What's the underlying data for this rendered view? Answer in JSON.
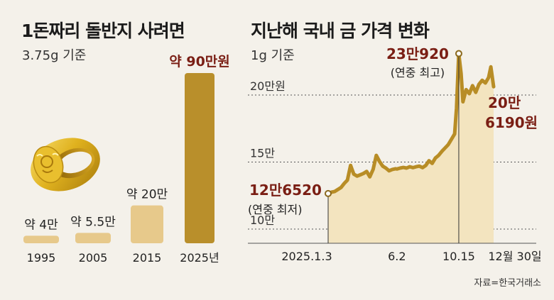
{
  "left": {
    "title": "1돈짜리 돌반지 사려면",
    "subtitle": "3.75g 기준"
  },
  "right": {
    "title": "지난해 국내 금 가격 변화",
    "subtitle": "1g 기준",
    "source": "자료=한국거래소"
  },
  "colors": {
    "bar_light": "#e7c98b",
    "bar_dark": "#b98f2b",
    "line": "#b88d26",
    "area": "#f3e4bf",
    "highlight_text": "#7a1e14",
    "background": "#f4f1ea"
  },
  "chart_data": [
    {
      "type": "bar",
      "categories": [
        "1995",
        "2005",
        "2015",
        "2025년"
      ],
      "values": [
        4,
        5.5,
        20,
        90
      ],
      "data_labels": [
        "약 4만",
        "약 5.5만",
        "약 20만",
        "약 90만원"
      ],
      "title": "1돈짜리 돌반지 사려면",
      "subtitle": "3.75g 기준",
      "unit": "만원"
    },
    {
      "type": "area",
      "title": "지난해 국내 금 가격 변화",
      "subtitle": "1g 기준",
      "y_ticks": [
        100000,
        150000,
        200000
      ],
      "y_tick_labels": [
        "10만",
        "15만",
        "20만원"
      ],
      "x_tick_labels": [
        "2025.1.3",
        "6.2",
        "10.15",
        "12월 30일"
      ],
      "ylim": [
        95000,
        240000
      ],
      "series": [
        {
          "x": [
            "2025-01-03",
            "2025-01-10",
            "2025-01-17",
            "2025-01-24",
            "2025-01-31",
            "2025-02-07",
            "2025-02-14",
            "2025-02-21",
            "2025-02-28",
            "2025-03-07",
            "2025-03-14",
            "2025-03-21",
            "2025-03-28",
            "2025-04-04",
            "2025-04-11",
            "2025-04-18",
            "2025-04-25",
            "2025-05-02",
            "2025-05-09",
            "2025-05-16",
            "2025-05-23",
            "2025-05-30",
            "2025-06-02",
            "2025-06-09",
            "2025-06-16",
            "2025-06-23",
            "2025-06-30",
            "2025-07-07",
            "2025-07-14",
            "2025-07-21",
            "2025-07-28",
            "2025-08-04",
            "2025-08-11",
            "2025-08-18",
            "2025-08-25",
            "2025-09-01",
            "2025-09-08",
            "2025-09-15",
            "2025-09-22",
            "2025-09-29",
            "2025-10-06",
            "2025-10-10",
            "2025-10-15",
            "2025-10-20",
            "2025-10-24",
            "2025-10-31",
            "2025-11-07",
            "2025-11-14",
            "2025-11-21",
            "2025-11-28",
            "2025-12-05",
            "2025-12-12",
            "2025-12-19",
            "2025-12-24",
            "2025-12-30"
          ],
          "y": [
            126520,
            127500,
            128000,
            129500,
            131000,
            134000,
            136500,
            147500,
            141000,
            139500,
            140500,
            141500,
            143000,
            139000,
            144500,
            155000,
            150500,
            147000,
            145500,
            143500,
            144500,
            145000,
            144800,
            145500,
            146000,
            145500,
            146500,
            145800,
            146500,
            147000,
            145800,
            147500,
            151000,
            149000,
            153000,
            155000,
            158000,
            160500,
            163000,
            167000,
            171000,
            190000,
            230920,
            216000,
            195000,
            204000,
            201000,
            207000,
            202000,
            208000,
            211000,
            209000,
            213000,
            221000,
            206190
          ]
        }
      ],
      "annotations": [
        {
          "label": "12만6520",
          "note": "(연중 최저)",
          "x": "2025-01-03",
          "y": 126520
        },
        {
          "label": "23만920",
          "note": "(연중 최고)",
          "x": "2025-10-15",
          "y": 230920
        },
        {
          "label": "20만",
          "label2": "6190원",
          "x": "2025-12-30",
          "y": 206190
        }
      ]
    }
  ]
}
